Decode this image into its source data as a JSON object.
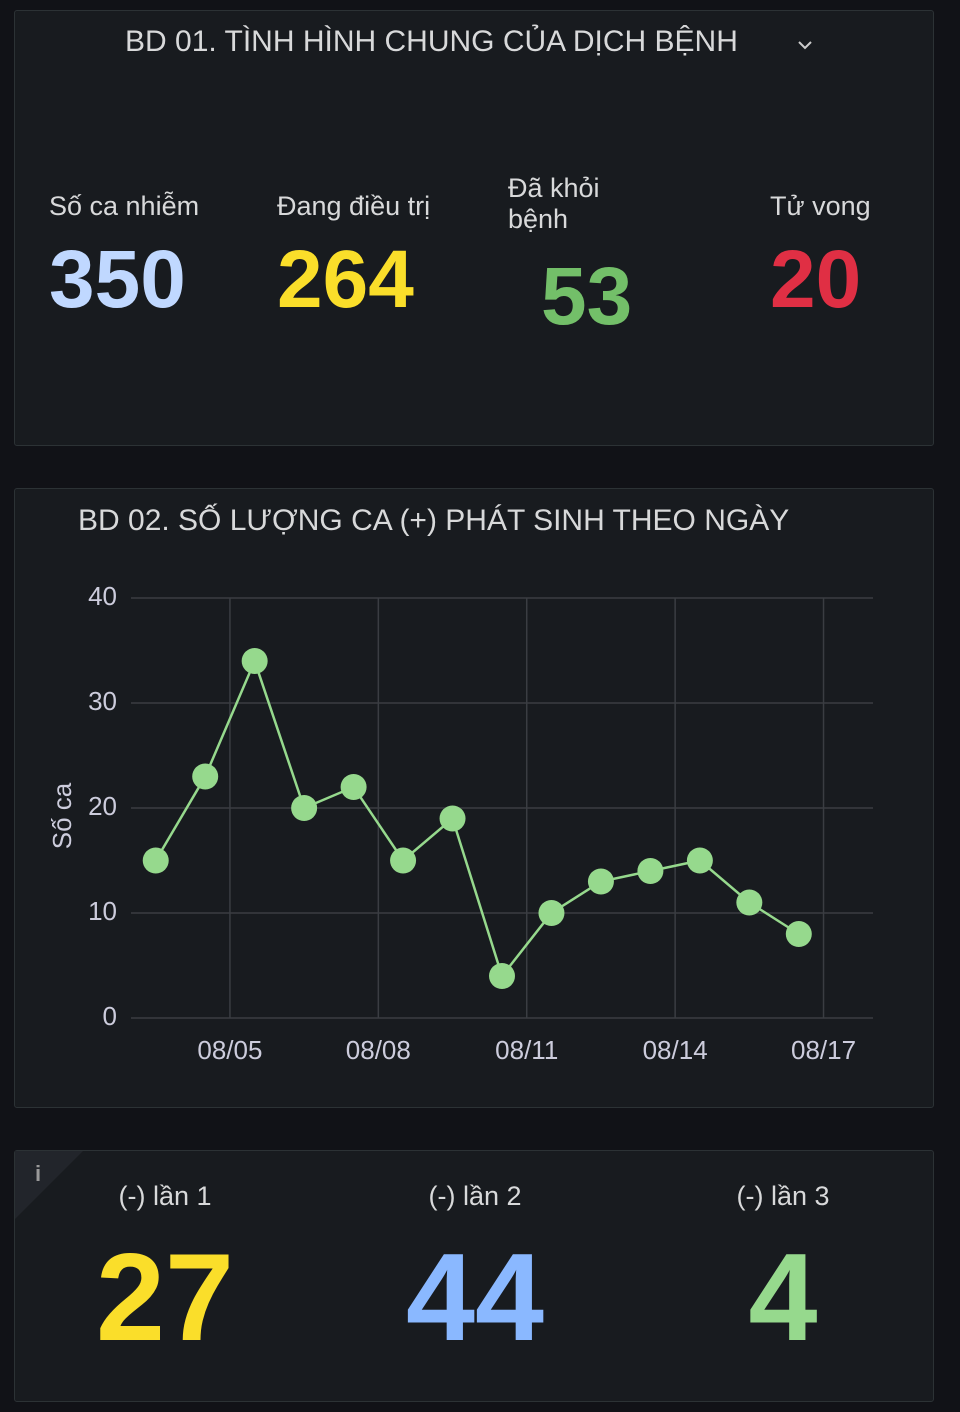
{
  "summary_panel": {
    "title": "BD 01. TÌNH HÌNH CHUNG CỦA DỊCH BỆNH",
    "stats": [
      {
        "label": "Số ca nhiễm",
        "value": 350,
        "color": "#c0d8ff"
      },
      {
        "label": "Đang điều trị",
        "value": 264,
        "color": "#fade2a"
      },
      {
        "label": "Đã khỏi bệnh",
        "value": 53,
        "color": "#73bf69"
      },
      {
        "label": "Tử vong",
        "value": 20,
        "color": "#e02f44"
      }
    ]
  },
  "chart_data": {
    "type": "line",
    "title": "BD 02. SỐ LƯỢNG CA (+) PHÁT SINH THEO NGÀY",
    "y_label": "Số ca",
    "x": [
      "08/03",
      "08/04",
      "08/05",
      "08/06",
      "08/07",
      "08/08",
      "08/09",
      "08/10",
      "08/11",
      "08/12",
      "08/13",
      "08/14",
      "08/15",
      "08/16"
    ],
    "series": [
      {
        "name": "Số ca",
        "color": "#96d98d",
        "values": [
          15,
          23,
          34,
          20,
          22,
          15,
          19,
          4,
          10,
          13,
          14,
          15,
          11,
          8
        ]
      }
    ],
    "xlim": [
      "08/03",
      "08/18"
    ],
    "xticks": [
      "08/05",
      "08/08",
      "08/11",
      "08/14",
      "08/17"
    ],
    "ylim": [
      0,
      40
    ],
    "yticks": [
      0,
      10,
      20,
      30,
      40
    ],
    "grid": true
  },
  "test_panel": {
    "stats": [
      {
        "label": "(-) lần 1",
        "value": 27,
        "color": "#fade2a"
      },
      {
        "label": "(-) lần 2",
        "value": 44,
        "color": "#8ab8ff"
      },
      {
        "label": "(-) lần 3",
        "value": 4,
        "color": "#96d98d"
      }
    ]
  }
}
